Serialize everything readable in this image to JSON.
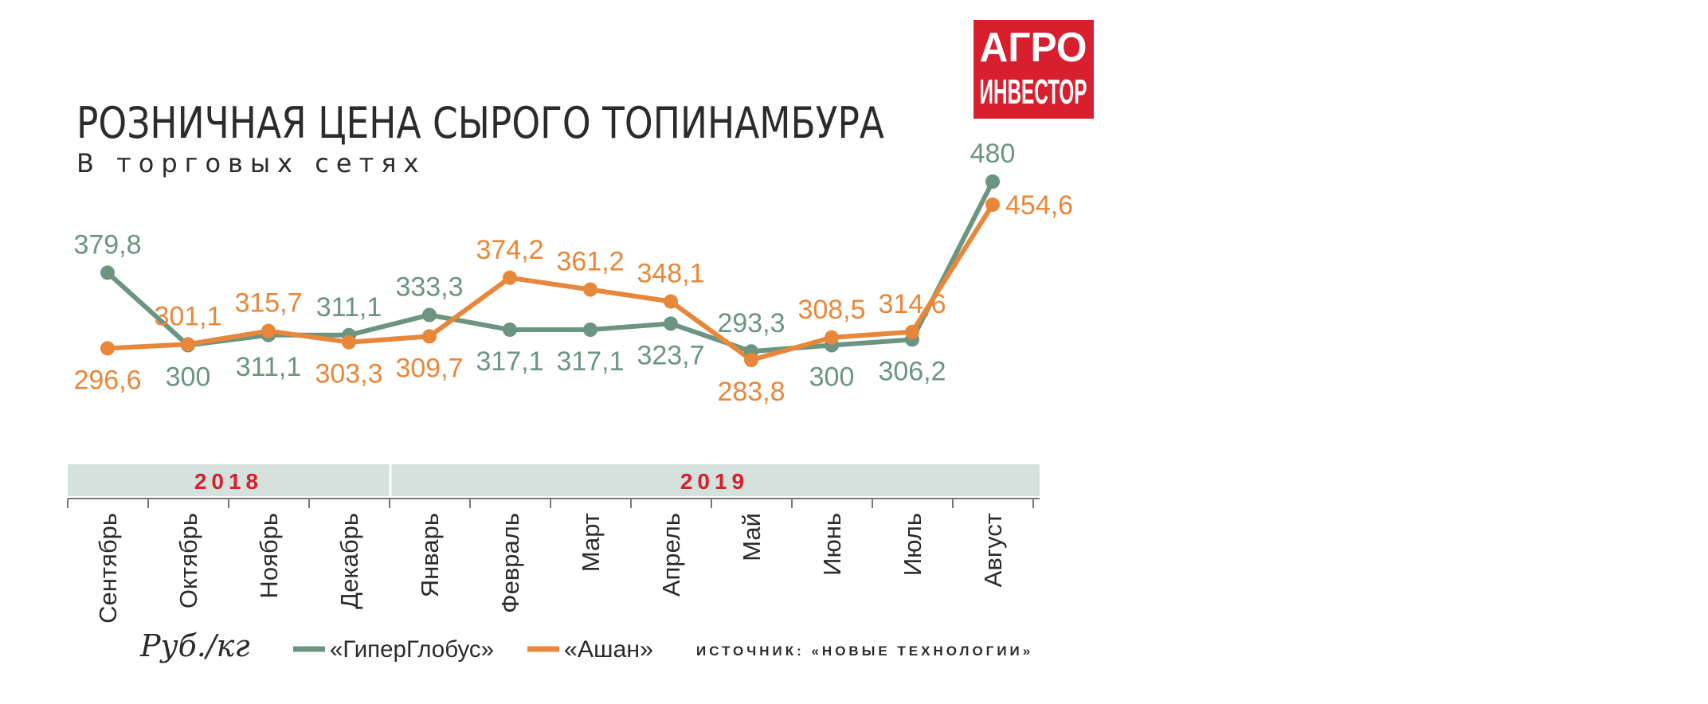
{
  "logo": {
    "line1": "АГРО",
    "line2": "ИНВЕСТОР"
  },
  "chart_data": {
    "type": "line",
    "title": "РОЗНИЧНАЯ ЦЕНА СЫРОГО ТОПИНАМБУРА",
    "subtitle": "В торговых сетях",
    "unit": "Руб./кг",
    "source": "ИСТОЧНИК: «НОВЫЕ ТЕХНОЛОГИИ»",
    "categories": [
      "Сентябрь",
      "Октябрь",
      "Ноябрь",
      "Декабрь",
      "Январь",
      "Февраль",
      "Март",
      "Апрель",
      "Май",
      "Июнь",
      "Июль",
      "Август"
    ],
    "years": [
      {
        "label": "2018",
        "from": 0,
        "to": 3
      },
      {
        "label": "2019",
        "from": 4,
        "to": 11
      }
    ],
    "series": [
      {
        "name": "«ГиперГлобус»",
        "color": "#6b9581",
        "values": [
          379.8,
          300,
          311.1,
          311.1,
          333.3,
          317.1,
          317.1,
          323.7,
          293.3,
          300,
          306.2,
          480
        ],
        "labels": [
          "379,8",
          "300",
          "311,1",
          "311,1",
          "333,3",
          "317,1",
          "317,1",
          "323,7",
          "293,3",
          "300",
          "306,2",
          "480"
        ]
      },
      {
        "name": "«Ашан»",
        "color": "#e8873a",
        "values": [
          296.6,
          301.1,
          315.7,
          303.3,
          309.7,
          374.2,
          361.2,
          348.1,
          283.8,
          308.5,
          314.6,
          454.6
        ],
        "labels": [
          "296,6",
          "301,1",
          "315,7",
          "303,3",
          "309,7",
          "374,2",
          "361,2",
          "348,1",
          "283,8",
          "308,5",
          "314,6",
          "454,6"
        ]
      }
    ],
    "legend_position": "bottom",
    "grid": false
  }
}
